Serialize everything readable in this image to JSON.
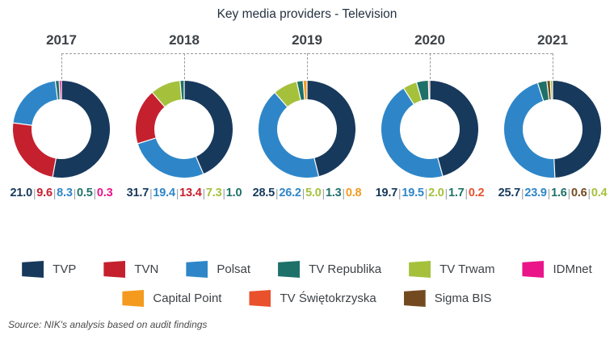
{
  "title": "Key media providers - Television",
  "source_note": "Source: NIK's analysis based on audit findings",
  "colors": {
    "title_text": "#243240",
    "year_label": "#3d4247",
    "value_separator": "#98a0a6",
    "dashed_connector": "#9b9b9b",
    "legend_label": "#3d4247",
    "source_text": "#4c4c4c"
  },
  "chart_data": {
    "type": "pie",
    "variant": "donut-small-multiples",
    "title": "Key media providers - Television",
    "legend_position": "bottom",
    "legend": [
      {
        "label": "TVP",
        "color": "#17395c"
      },
      {
        "label": "TVN",
        "color": "#c5202e"
      },
      {
        "label": "Polsat",
        "color": "#2e86c8"
      },
      {
        "label": "TV Republika",
        "color": "#1e7168"
      },
      {
        "label": "TV Trwam",
        "color": "#a5c13c"
      },
      {
        "label": "IDMnet",
        "color": "#ea1589"
      },
      {
        "label": "Capital Point",
        "color": "#f49a1e"
      },
      {
        "label": "TV Świętokrzyska",
        "color": "#e8512b"
      },
      {
        "label": "Sigma BIS",
        "color": "#734a20"
      }
    ],
    "legend_rows": [
      [
        0,
        1,
        2,
        3,
        4,
        5
      ],
      [
        6,
        7,
        8
      ]
    ],
    "years": [
      {
        "year": "2017",
        "segments": [
          {
            "provider": "TVP",
            "value": 21.0,
            "display": "21.0"
          },
          {
            "provider": "TVN",
            "value": 9.6,
            "display": "9.6"
          },
          {
            "provider": "Polsat",
            "value": 8.3,
            "display": "8.3"
          },
          {
            "provider": "TV Republika",
            "value": 0.5,
            "display": "0.5"
          },
          {
            "provider": "IDMnet",
            "value": 0.3,
            "display": "0.3"
          }
        ]
      },
      {
        "year": "2018",
        "segments": [
          {
            "provider": "TVP",
            "value": 31.7,
            "display": "31.7"
          },
          {
            "provider": "Polsat",
            "value": 19.4,
            "display": "19.4"
          },
          {
            "provider": "TVN",
            "value": 13.4,
            "display": "13.4"
          },
          {
            "provider": "TV Trwam",
            "value": 7.3,
            "display": "7.3"
          },
          {
            "provider": "TV Republika",
            "value": 1.0,
            "display": "1.0"
          }
        ]
      },
      {
        "year": "2019",
        "segments": [
          {
            "provider": "TVP",
            "value": 28.5,
            "display": "28.5"
          },
          {
            "provider": "Polsat",
            "value": 26.2,
            "display": "26.2"
          },
          {
            "provider": "TV Trwam",
            "value": 5.0,
            "display": "5.0"
          },
          {
            "provider": "TV Republika",
            "value": 1.3,
            "display": "1.3"
          },
          {
            "provider": "Capital Point",
            "value": 0.8,
            "display": "0.8"
          }
        ]
      },
      {
        "year": "2020",
        "segments": [
          {
            "provider": "TVP",
            "value": 19.7,
            "display": "19.7"
          },
          {
            "provider": "Polsat",
            "value": 19.5,
            "display": "19.5"
          },
          {
            "provider": "TV Trwam",
            "value": 2.0,
            "display": "2.0"
          },
          {
            "provider": "TV Republika",
            "value": 1.7,
            "display": "1.7"
          },
          {
            "provider": "TV Świętokrzyska",
            "value": 0.2,
            "display": "0.2"
          }
        ]
      },
      {
        "year": "2021",
        "segments": [
          {
            "provider": "TVP",
            "value": 25.7,
            "display": "25.7"
          },
          {
            "provider": "Polsat",
            "value": 23.9,
            "display": "23.9"
          },
          {
            "provider": "TV Republika",
            "value": 1.6,
            "display": "1.6"
          },
          {
            "provider": "Sigma BIS",
            "value": 0.6,
            "display": "0.6"
          },
          {
            "provider": "TV Trwam",
            "value": 0.4,
            "display": "0.4"
          }
        ]
      }
    ]
  }
}
